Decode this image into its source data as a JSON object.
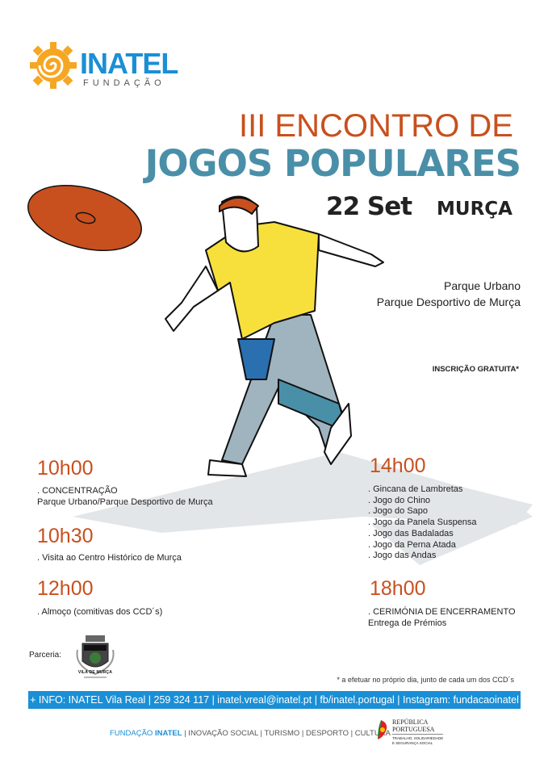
{
  "logo": {
    "name": "INATEL",
    "subtitle": "FUNDAÇÃO",
    "colors": {
      "sun": "#f5a623",
      "text": "#1a8fd6"
    }
  },
  "title": {
    "line1": "III ENCONTRO DE",
    "line2": "JOGOS POPULARES"
  },
  "event": {
    "date": "22 Set",
    "place": "MURÇA",
    "venue_line1": "Parque Urbano",
    "venue_line2": "Parque Desportivo de Murça",
    "registration": "INSCRIÇÃO GRATUITA*"
  },
  "schedule": {
    "left": [
      {
        "time": "10h00",
        "lines": [
          ". CONCENTRAÇÃO",
          "Parque Urbano/Parque Desportivo de Murça"
        ]
      },
      {
        "time": "10h30",
        "lines": [
          ". Visita ao Centro Histórico de Murça"
        ]
      },
      {
        "time": "12h00",
        "lines": [
          ". Almoço (comitivas dos CCD´s)"
        ]
      }
    ],
    "right": [
      {
        "time": "14h00",
        "lines": [
          ". Gincana de Lambretas",
          ". Jogo do Chino",
          ". Jogo do Sapo",
          ". Jogo da Panela Suspensa",
          ". Jogo das Badaladas",
          ". Jogo da Perna Atada",
          ". Jogo das Andas"
        ]
      },
      {
        "time": "18h00",
        "lines": [
          ". CERIMÓNIA DE ENCERRAMENTO",
          "Entrega de Prémios"
        ]
      }
    ]
  },
  "partnership": {
    "label": "Parceria:",
    "partner": "Vila de Murça"
  },
  "footnote": "* a efetuar no próprio dia, junto de cada um dos CCD´s",
  "info_bar": "+ INFO: INATEL Vila Real | 259 324 117 | inatel.vreal@inatel.pt | fb/inatel.portugal | Instagram: fundacaoinatel",
  "footer": {
    "brand_prefix": "FUNDAÇÃO ",
    "brand": "INATEL",
    "rest": " | INOVAÇÃO SOCIAL | TURISMO | DESPORTO | CULTURA",
    "gov_line1": "REPÚBLICA",
    "gov_line2": "PORTUGUESA",
    "gov_line3": "TRABALHO, SOLIDARIEDADE",
    "gov_line4": "E SEGURANÇA SOCIAL"
  },
  "colors": {
    "orange": "#c8501e",
    "teal": "#4a8fa8",
    "blue": "#1a8fd6",
    "yellow": "#f7e03c"
  }
}
